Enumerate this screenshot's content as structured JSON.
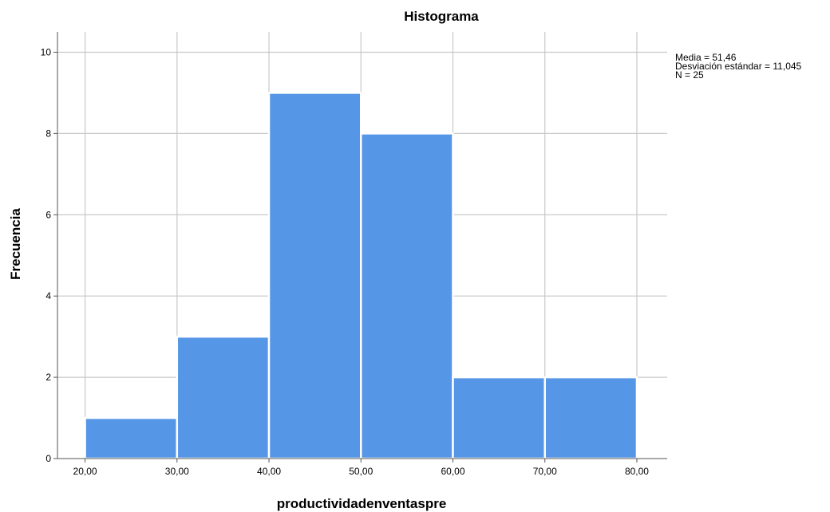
{
  "chart_data": {
    "type": "bar",
    "title": "Histograma",
    "xlabel": "productividadenventaspre",
    "ylabel": "Frecuencia",
    "bins": [
      {
        "start": 20,
        "end": 30,
        "count": 1
      },
      {
        "start": 30,
        "end": 40,
        "count": 3
      },
      {
        "start": 40,
        "end": 50,
        "count": 9
      },
      {
        "start": 50,
        "end": 60,
        "count": 8
      },
      {
        "start": 60,
        "end": 70,
        "count": 2
      },
      {
        "start": 70,
        "end": 80,
        "count": 2
      }
    ],
    "x_ticks": [
      "20,00",
      "30,00",
      "40,00",
      "50,00",
      "60,00",
      "70,00",
      "80,00"
    ],
    "x_tick_values": [
      20,
      30,
      40,
      50,
      60,
      70,
      80
    ],
    "y_ticks": [
      "0",
      "2",
      "4",
      "6",
      "8",
      "10"
    ],
    "y_tick_values": [
      0,
      2,
      4,
      6,
      8,
      10
    ],
    "xlim": [
      17,
      83.3
    ],
    "ylim": [
      0,
      10.5
    ],
    "grid": true,
    "bar_color": "#5596e6",
    "stats": {
      "mean": "Media = 51,46",
      "std": "Desviación estándar = 11,045",
      "n": "N = 25"
    }
  }
}
